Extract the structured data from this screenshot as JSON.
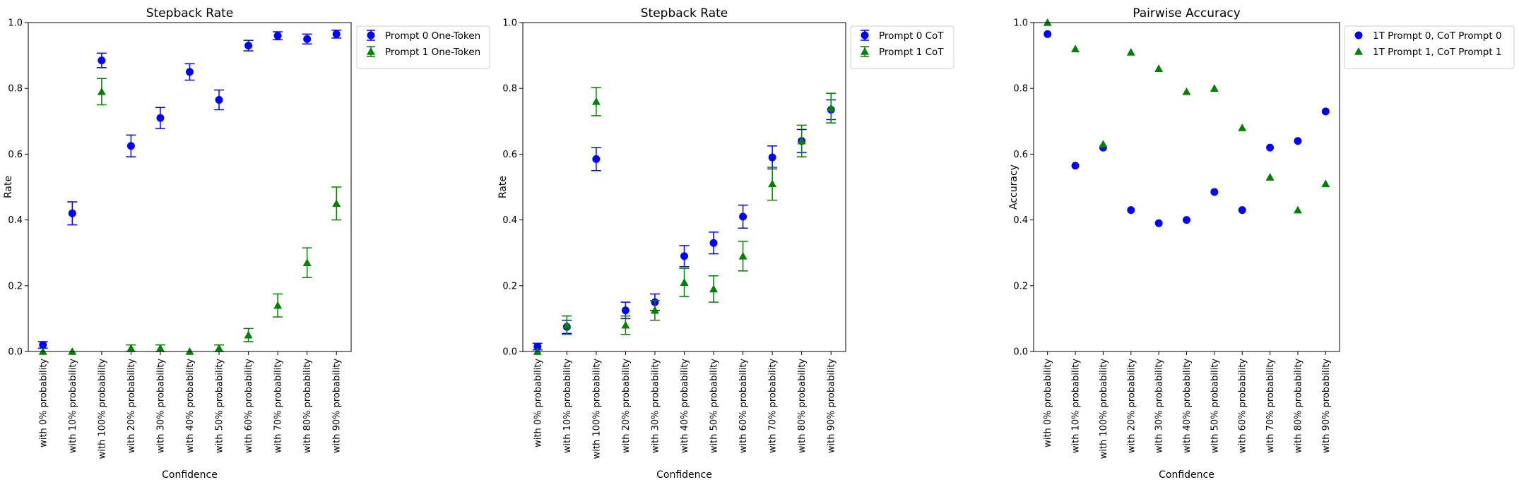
{
  "chart_data": [
    {
      "type": "scatter",
      "title": "Stepback Rate",
      "xlabel": "Confidence",
      "ylabel": "Rate",
      "ylim": [
        0,
        1
      ],
      "yticks": [
        "0.0",
        "0.2",
        "0.4",
        "0.6",
        "0.8",
        "1.0"
      ],
      "categories": [
        "with 0% probability",
        "with 10% probability",
        "with 100% probability",
        "with 20% probability",
        "with 30% probability",
        "with 40% probability",
        "with 50% probability",
        "with 60% probability",
        "with 70% probability",
        "with 80% probability",
        "with 90% probability"
      ],
      "legend_position": "outside-top-right",
      "error_bars": true,
      "series": [
        {
          "name": "Prompt 0 One-Token",
          "marker": "circle",
          "color": "#0000ff",
          "values": [
            0.02,
            0.42,
            0.885,
            0.625,
            0.71,
            0.85,
            0.765,
            0.93,
            0.96,
            0.95,
            0.965
          ],
          "errors": [
            0.01,
            0.035,
            0.022,
            0.033,
            0.032,
            0.025,
            0.03,
            0.016,
            0.012,
            0.015,
            0.012
          ]
        },
        {
          "name": "Prompt 1 One-Token",
          "marker": "triangle",
          "color": "#008000",
          "values": [
            0.0,
            0.0,
            0.79,
            0.01,
            0.01,
            0.0,
            0.01,
            0.05,
            0.14,
            0.27,
            0.45
          ],
          "errors": [
            0.0,
            0.0,
            0.04,
            0.01,
            0.01,
            0.0,
            0.01,
            0.02,
            0.035,
            0.045,
            0.05
          ]
        }
      ]
    },
    {
      "type": "scatter",
      "title": "Stepback Rate",
      "xlabel": "Confidence",
      "ylabel": "Rate",
      "ylim": [
        0,
        1
      ],
      "yticks": [
        "0.0",
        "0.2",
        "0.4",
        "0.6",
        "0.8",
        "1.0"
      ],
      "categories": [
        "with 0% probability",
        "with 10% probability",
        "with 100% probability",
        "with 20% probability",
        "with 30% probability",
        "with 40% probability",
        "with 50% probability",
        "with 60% probability",
        "with 70% probability",
        "with 80% probability",
        "with 90% probability"
      ],
      "legend_position": "outside-top-right",
      "error_bars": true,
      "series": [
        {
          "name": "Prompt 0 CoT",
          "marker": "circle",
          "color": "#0000ff",
          "values": [
            0.015,
            0.075,
            0.585,
            0.125,
            0.15,
            0.29,
            0.33,
            0.41,
            0.59,
            0.64,
            0.735
          ],
          "errors": [
            0.01,
            0.02,
            0.035,
            0.025,
            0.025,
            0.032,
            0.033,
            0.035,
            0.035,
            0.035,
            0.03
          ]
        },
        {
          "name": "Prompt 1 CoT",
          "marker": "triangle",
          "color": "#008000",
          "values": [
            0.0,
            0.08,
            0.76,
            0.08,
            0.125,
            0.21,
            0.19,
            0.29,
            0.51,
            0.64,
            0.74
          ],
          "errors": [
            0.0,
            0.028,
            0.043,
            0.028,
            0.03,
            0.043,
            0.04,
            0.045,
            0.05,
            0.048,
            0.045
          ]
        }
      ]
    },
    {
      "type": "scatter",
      "title": "Pairwise Accuracy",
      "xlabel": "Confidence",
      "ylabel": "Accuracy",
      "ylim": [
        0,
        1
      ],
      "yticks": [
        "0.0",
        "0.2",
        "0.4",
        "0.6",
        "0.8",
        "1.0"
      ],
      "categories": [
        "with 0% probability",
        "with 10% probability",
        "with 100% probability",
        "with 20% probability",
        "with 30% probability",
        "with 40% probability",
        "with 50% probability",
        "with 60% probability",
        "with 70% probability",
        "with 80% probability",
        "with 90% probability"
      ],
      "legend_position": "outside-top-right",
      "error_bars": false,
      "series": [
        {
          "name": "1T Prompt 0, CoT Prompt 0",
          "marker": "circle",
          "color": "#0000ff",
          "values": [
            0.965,
            0.565,
            0.62,
            0.43,
            0.39,
            0.4,
            0.485,
            0.43,
            0.62,
            0.64,
            0.73
          ]
        },
        {
          "name": "1T Prompt 1, CoT Prompt 1",
          "marker": "triangle",
          "color": "#008000",
          "values": [
            1.0,
            0.92,
            0.63,
            0.91,
            0.86,
            0.79,
            0.8,
            0.68,
            0.53,
            0.43,
            0.51
          ]
        }
      ]
    }
  ]
}
